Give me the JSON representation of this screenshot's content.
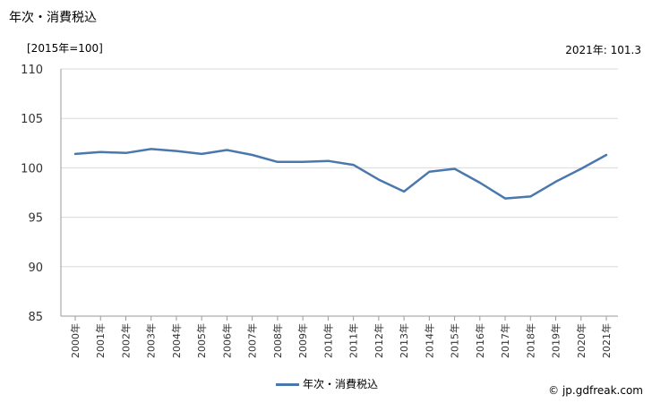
{
  "header": {
    "title": "年次・消費税込",
    "unit": "[2015年=100]",
    "latest": "2021年: 101.3"
  },
  "footer": {
    "source": "© jp.gdfreak.com"
  },
  "chart_data": {
    "type": "line",
    "title": "年次・消費税込",
    "xlabel": "",
    "ylabel": "",
    "categories": [
      "2000年",
      "2001年",
      "2002年",
      "2003年",
      "2004年",
      "2005年",
      "2006年",
      "2007年",
      "2008年",
      "2009年",
      "2010年",
      "2011年",
      "2012年",
      "2013年",
      "2014年",
      "2015年",
      "2016年",
      "2017年",
      "2018年",
      "2019年",
      "2020年",
      "2021年"
    ],
    "series": [
      {
        "name": "年次・消費税込",
        "values": [
          101.4,
          101.6,
          101.5,
          101.9,
          101.7,
          101.4,
          101.8,
          101.3,
          100.6,
          100.6,
          100.7,
          100.3,
          98.8,
          97.6,
          99.6,
          99.9,
          98.5,
          96.9,
          97.1,
          98.6,
          99.9,
          101.3
        ]
      }
    ],
    "ylim": [
      85,
      110
    ],
    "yticks": [
      85,
      90,
      95,
      100,
      105,
      110
    ],
    "grid": true,
    "legend": "bottom-center",
    "line_color": "#4a78ad",
    "grid_color": "#d9d9d9"
  }
}
